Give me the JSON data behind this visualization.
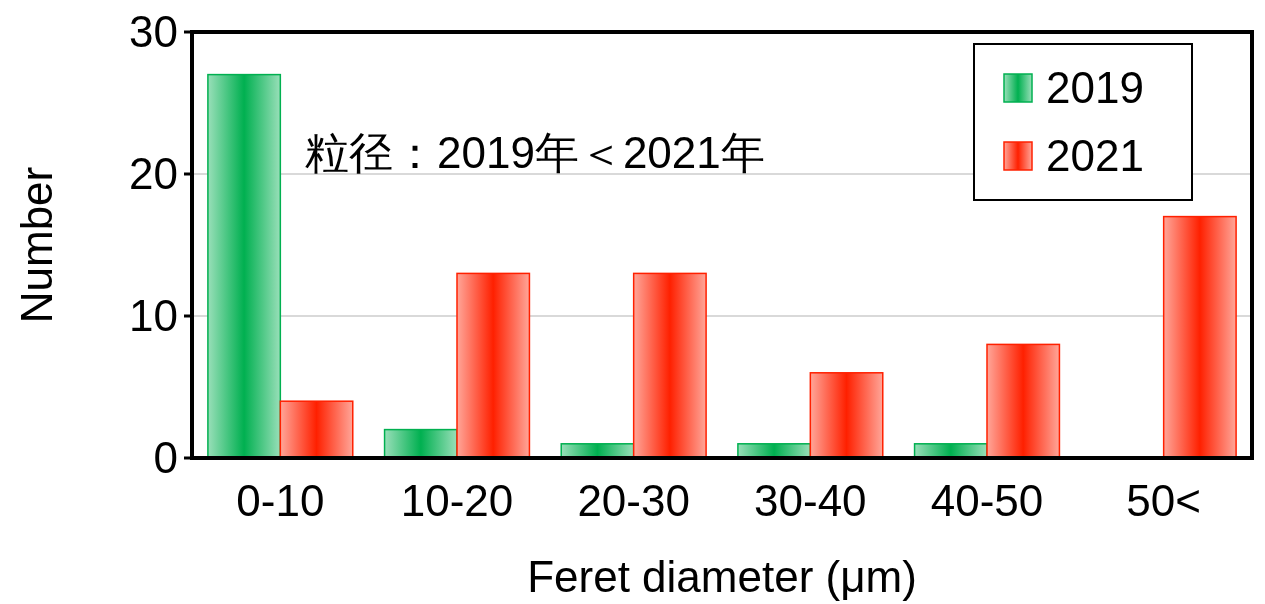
{
  "chart_data": {
    "type": "bar",
    "xlabel": "Feret diameter (μm)",
    "ylabel": "Number",
    "categories": [
      "0-10",
      "10-20",
      "20-30",
      "30-40",
      "40-50",
      "50<"
    ],
    "series": [
      {
        "name": "2019",
        "color": "#00b050",
        "values": [
          27,
          2,
          1,
          1,
          1,
          0
        ]
      },
      {
        "name": "2021",
        "color": "#ff2000",
        "values": [
          4,
          13,
          13,
          6,
          8,
          17
        ]
      }
    ],
    "ylim": [
      0,
      30
    ],
    "yticks": [
      0,
      10,
      20,
      30
    ],
    "grid": "y",
    "legend": "top right",
    "annotations": [
      "粒径：2019年＜2021年"
    ]
  }
}
